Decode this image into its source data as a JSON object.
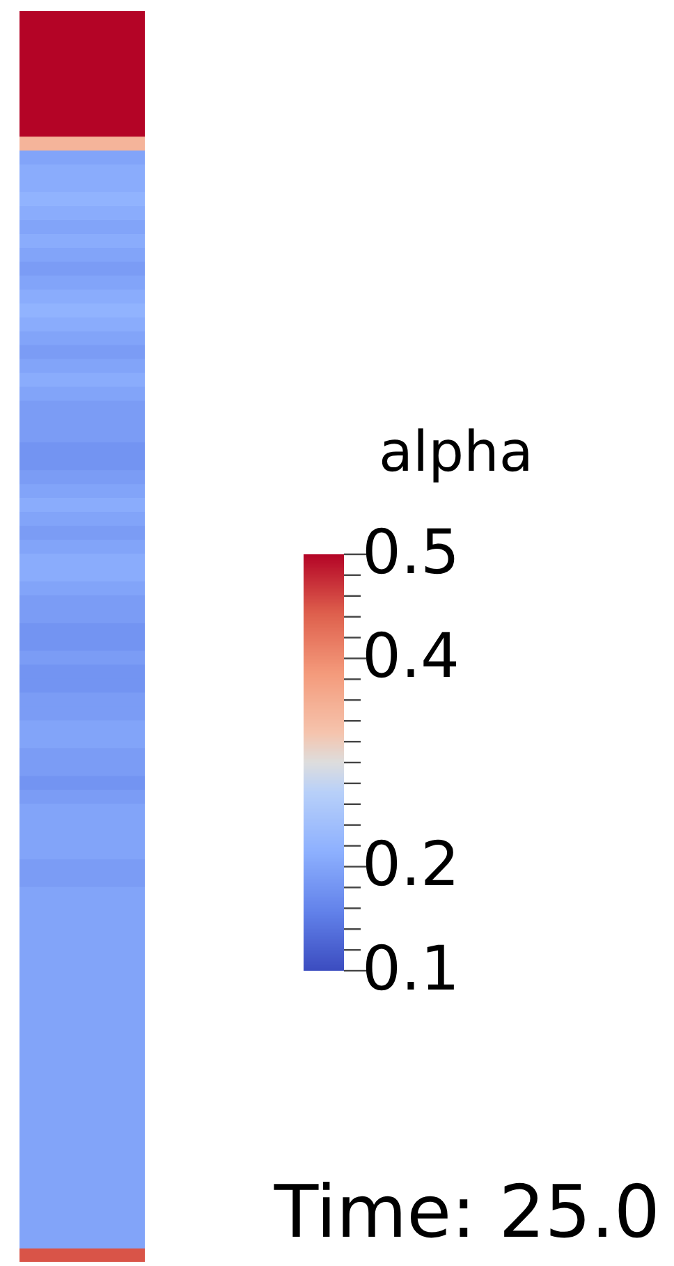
{
  "chart_data": {
    "type": "heatmap",
    "clabel": "alpha",
    "annotations": [
      "Time: 25.0"
    ],
    "tick_labels": false,
    "categories": [
      null
    ],
    "y_categories": [
      null,
      null,
      null,
      null,
      null,
      null,
      null,
      null,
      null,
      null,
      null,
      null,
      null,
      null,
      null,
      null,
      null,
      null,
      null,
      null,
      null,
      null,
      null,
      null,
      null,
      null,
      null,
      null,
      null,
      null,
      null,
      null,
      null,
      null,
      null,
      null,
      null,
      null,
      null,
      null,
      null,
      null,
      null,
      null,
      null,
      null,
      null,
      null,
      null,
      null,
      null,
      null,
      null,
      null,
      null,
      null,
      null,
      null,
      null,
      null,
      null,
      null,
      null,
      null,
      null,
      null,
      null,
      null,
      null,
      null,
      null,
      null,
      null,
      null,
      null,
      null,
      null,
      null,
      null,
      null,
      null,
      null,
      null,
      null,
      null,
      null,
      null,
      null,
      null,
      null
    ],
    "cells": [
      [
        0.5
      ],
      [
        0.5
      ],
      [
        0.5
      ],
      [
        0.5
      ],
      [
        0.5
      ],
      [
        0.5
      ],
      [
        0.5
      ],
      [
        0.5
      ],
      [
        0.5
      ],
      [
        0.35
      ],
      [
        0.2
      ],
      [
        0.21
      ],
      [
        0.21
      ],
      [
        0.22
      ],
      [
        0.21
      ],
      [
        0.2
      ],
      [
        0.21
      ],
      [
        0.2
      ],
      [
        0.19
      ],
      [
        0.2
      ],
      [
        0.21
      ],
      [
        0.22
      ],
      [
        0.21
      ],
      [
        0.2
      ],
      [
        0.19
      ],
      [
        0.2
      ],
      [
        0.21
      ],
      [
        0.2
      ],
      [
        0.19
      ],
      [
        0.19
      ],
      [
        0.19
      ],
      [
        0.18
      ],
      [
        0.18
      ],
      [
        0.19
      ],
      [
        0.2
      ],
      [
        0.21
      ],
      [
        0.2
      ],
      [
        0.19
      ],
      [
        0.2
      ],
      [
        0.21
      ],
      [
        0.21
      ],
      [
        0.2
      ],
      [
        0.19
      ],
      [
        0.19
      ],
      [
        0.18
      ],
      [
        0.18
      ],
      [
        0.19
      ],
      [
        0.18
      ],
      [
        0.18
      ],
      [
        0.19
      ],
      [
        0.19
      ],
      [
        0.2
      ],
      [
        0.2
      ],
      [
        0.19
      ],
      [
        0.19
      ],
      [
        0.18
      ],
      [
        0.19
      ],
      [
        0.2
      ],
      [
        0.2
      ],
      [
        0.2
      ],
      [
        0.2
      ],
      [
        0.19
      ],
      [
        0.19
      ],
      [
        0.2
      ],
      [
        0.2
      ],
      [
        0.2
      ],
      [
        0.2
      ],
      [
        0.2
      ],
      [
        0.2
      ],
      [
        0.2
      ],
      [
        0.2
      ],
      [
        0.2
      ],
      [
        0.2
      ],
      [
        0.2
      ],
      [
        0.2
      ],
      [
        0.2
      ],
      [
        0.2
      ],
      [
        0.2
      ],
      [
        0.2
      ],
      [
        0.2
      ],
      [
        0.2
      ],
      [
        0.2
      ],
      [
        0.2
      ],
      [
        0.2
      ],
      [
        0.2
      ],
      [
        0.2
      ],
      [
        0.2
      ],
      [
        0.2
      ],
      [
        0.2
      ],
      [
        0.45
      ]
    ],
    "clim": [
      0.1,
      0.5
    ],
    "cticks": [
      0.1,
      {
        "value": 0.12,
        "label": null
      },
      {
        "value": 0.14,
        "label": null
      },
      {
        "value": 0.16,
        "label": null
      },
      {
        "value": 0.18,
        "label": null
      },
      0.2,
      {
        "value": 0.22,
        "label": null
      },
      {
        "value": 0.24,
        "label": null
      },
      {
        "value": 0.26,
        "label": null
      },
      {
        "value": 0.28,
        "label": null
      },
      {
        "value": 0.3,
        "label": null
      },
      {
        "value": 0.32,
        "label": null
      },
      {
        "value": 0.34,
        "label": null
      },
      {
        "value": 0.36,
        "label": null
      },
      {
        "value": 0.38,
        "label": null
      },
      0.4,
      {
        "value": 0.42,
        "label": null
      },
      {
        "value": 0.44,
        "label": null
      },
      {
        "value": 0.46,
        "label": null
      },
      {
        "value": 0.48,
        "label": null
      },
      0.5
    ]
  }
}
